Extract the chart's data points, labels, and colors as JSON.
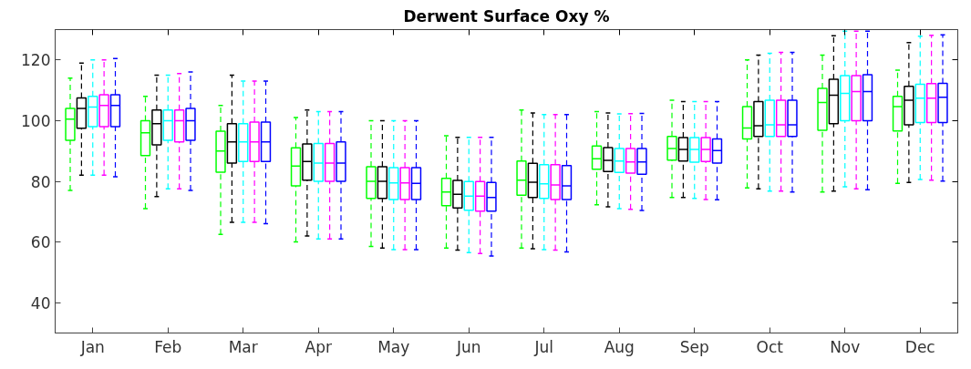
{
  "chart_data": {
    "type": "box",
    "title": "Derwent Surface Oxy %",
    "categories": [
      "Jan",
      "Feb",
      "Mar",
      "Apr",
      "May",
      "Jun",
      "Jul",
      "Aug",
      "Sep",
      "Oct",
      "Nov",
      "Dec"
    ],
    "ylim": [
      30,
      130
    ],
    "yticks": [
      40,
      60,
      80,
      100,
      120
    ],
    "grid": false,
    "line_style": "dashed",
    "series": [
      {
        "color": "#00ff00",
        "boxes": [
          {
            "low": 77,
            "q1": 93.5,
            "median": 100.5,
            "q3": 104,
            "high": 114
          },
          {
            "low": 71,
            "q1": 88.5,
            "median": 96,
            "q3": 100,
            "high": 108
          },
          {
            "low": 62.5,
            "q1": 83,
            "median": 90,
            "q3": 96.5,
            "high": 105
          },
          {
            "low": 60,
            "q1": 78.5,
            "median": 85,
            "q3": 91,
            "high": 101
          },
          {
            "low": 58.5,
            "q1": 74.4,
            "median": 80,
            "q3": 84.8,
            "high": 100
          },
          {
            "low": 58,
            "q1": 72,
            "median": 76.5,
            "q3": 81,
            "high": 95
          },
          {
            "low": 58,
            "q1": 75.4,
            "median": 80.4,
            "q3": 86.7,
            "high": 103.5
          },
          {
            "low": 72.3,
            "q1": 84,
            "median": 87.4,
            "q3": 91.6,
            "high": 103
          },
          {
            "low": 74.7,
            "q1": 87,
            "median": 90.8,
            "q3": 94.8,
            "high": 106.7
          },
          {
            "low": 77.8,
            "q1": 94,
            "median": 97.6,
            "q3": 104.6,
            "high": 120
          },
          {
            "low": 76.5,
            "q1": 96.8,
            "median": 106,
            "q3": 110.6,
            "high": 121.6
          },
          {
            "low": 79.3,
            "q1": 96.6,
            "median": 104.6,
            "q3": 108,
            "high": 116.6
          }
        ]
      },
      {
        "color": "#000000",
        "boxes": [
          {
            "low": 82,
            "q1": 97.5,
            "median": 104,
            "q3": 107.5,
            "high": 119
          },
          {
            "low": 75,
            "q1": 92,
            "median": 99,
            "q3": 103.5,
            "high": 115
          },
          {
            "low": 66.5,
            "q1": 86,
            "median": 93,
            "q3": 99,
            "high": 115
          },
          {
            "low": 62,
            "q1": 80.4,
            "median": 86.5,
            "q3": 92.3,
            "high": 103.5
          },
          {
            "low": 58,
            "q1": 74.4,
            "median": 80,
            "q3": 84.8,
            "high": 100
          },
          {
            "low": 57.3,
            "q1": 71.2,
            "median": 75.7,
            "q3": 80.3,
            "high": 94.5
          },
          {
            "low": 57.8,
            "q1": 74.7,
            "median": 79.7,
            "q3": 85.9,
            "high": 102.5
          },
          {
            "low": 71.6,
            "q1": 83.2,
            "median": 86.9,
            "q3": 91.1,
            "high": 102.5
          },
          {
            "low": 74.7,
            "q1": 86.7,
            "median": 90.5,
            "q3": 94.4,
            "high": 106.3
          },
          {
            "low": 77.5,
            "q1": 94.8,
            "median": 98.3,
            "q3": 106.3,
            "high": 121.6
          },
          {
            "low": 76.8,
            "q1": 99,
            "median": 108.4,
            "q3": 113.6,
            "high": 128
          },
          {
            "low": 79.6,
            "q1": 98.6,
            "median": 106.7,
            "q3": 111.3,
            "high": 125.7
          }
        ]
      },
      {
        "color": "#00ffff",
        "boxes": [
          {
            "low": 82,
            "q1": 98,
            "median": 104.5,
            "q3": 108,
            "high": 120
          },
          {
            "low": 77.5,
            "q1": 93.5,
            "median": 100,
            "q3": 103.5,
            "high": 115
          },
          {
            "low": 66.5,
            "q1": 86.5,
            "median": 93,
            "q3": 99,
            "high": 113
          },
          {
            "low": 61,
            "q1": 80,
            "median": 86,
            "q3": 92.5,
            "high": 103
          },
          {
            "low": 57.5,
            "q1": 74,
            "median": 79.5,
            "q3": 84.5,
            "high": 100
          },
          {
            "low": 56.5,
            "q1": 70.5,
            "median": 75.1,
            "q3": 79.9,
            "high": 94.5
          },
          {
            "low": 57.5,
            "q1": 74.4,
            "median": 79.2,
            "q3": 85.5,
            "high": 102
          },
          {
            "low": 71,
            "q1": 82.9,
            "median": 86.7,
            "q3": 90.8,
            "high": 102.2
          },
          {
            "low": 74.4,
            "q1": 86.3,
            "median": 90.5,
            "q3": 94.4,
            "high": 106.3
          },
          {
            "low": 76.8,
            "q1": 94.8,
            "median": 98.6,
            "q3": 106.7,
            "high": 122.2
          },
          {
            "low": 78.2,
            "q1": 100,
            "median": 109,
            "q3": 114.8,
            "high": 129.5
          },
          {
            "low": 80.6,
            "q1": 99.4,
            "median": 107.4,
            "q3": 112,
            "high": 127.8
          }
        ]
      },
      {
        "color": "#ff00ff",
        "boxes": [
          {
            "low": 82,
            "q1": 98,
            "median": 105,
            "q3": 108.5,
            "high": 120
          },
          {
            "low": 77.5,
            "q1": 93,
            "median": 100,
            "q3": 103.5,
            "high": 115.5
          },
          {
            "low": 66.5,
            "q1": 86.5,
            "median": 93,
            "q3": 99.5,
            "high": 113
          },
          {
            "low": 61,
            "q1": 80,
            "median": 86,
            "q3": 92.5,
            "high": 103
          },
          {
            "low": 57.5,
            "q1": 74,
            "median": 79.5,
            "q3": 84.5,
            "high": 100
          },
          {
            "low": 56.2,
            "q1": 70.2,
            "median": 75.1,
            "q3": 79.9,
            "high": 94.5
          },
          {
            "low": 57.3,
            "q1": 74,
            "median": 78.8,
            "q3": 85.5,
            "high": 102
          },
          {
            "low": 70.8,
            "q1": 82.7,
            "median": 86.4,
            "q3": 90.8,
            "high": 102.3
          },
          {
            "low": 74,
            "q1": 86.5,
            "median": 90.5,
            "q3": 94.4,
            "high": 106.3
          },
          {
            "low": 76.8,
            "q1": 94.8,
            "median": 98.6,
            "q3": 106.7,
            "high": 122.5
          },
          {
            "low": 77.5,
            "q1": 100,
            "median": 109.6,
            "q3": 114.8,
            "high": 129.5
          },
          {
            "low": 80.4,
            "q1": 99.4,
            "median": 107.4,
            "q3": 112.2,
            "high": 128.1
          }
        ]
      },
      {
        "color": "#0000ff",
        "boxes": [
          {
            "low": 81.5,
            "q1": 98,
            "median": 105,
            "q3": 108.5,
            "high": 120.5
          },
          {
            "low": 77,
            "q1": 93.5,
            "median": 100,
            "q3": 104,
            "high": 116
          },
          {
            "low": 66,
            "q1": 86.5,
            "median": 93,
            "q3": 99.5,
            "high": 113
          },
          {
            "low": 61,
            "q1": 80,
            "median": 86,
            "q3": 93,
            "high": 103
          },
          {
            "low": 57.5,
            "q1": 74,
            "median": 79.3,
            "q3": 84.5,
            "high": 100
          },
          {
            "low": 55.4,
            "q1": 70.2,
            "median": 74.7,
            "q3": 79.6,
            "high": 94.5
          },
          {
            "low": 56.7,
            "q1": 74,
            "median": 78.5,
            "q3": 85.2,
            "high": 102
          },
          {
            "low": 70.4,
            "q1": 82.3,
            "median": 86.4,
            "q3": 90.8,
            "high": 102.4
          },
          {
            "low": 73.9,
            "q1": 86,
            "median": 90.1,
            "q3": 94,
            "high": 106.3
          },
          {
            "low": 76.5,
            "q1": 94.8,
            "median": 98.6,
            "q3": 106.7,
            "high": 122.5
          },
          {
            "low": 77.2,
            "q1": 100,
            "median": 109.6,
            "q3": 115.1,
            "high": 129.5
          },
          {
            "low": 80.1,
            "q1": 99.4,
            "median": 107.7,
            "q3": 112.3,
            "high": 128.3
          }
        ]
      }
    ]
  }
}
